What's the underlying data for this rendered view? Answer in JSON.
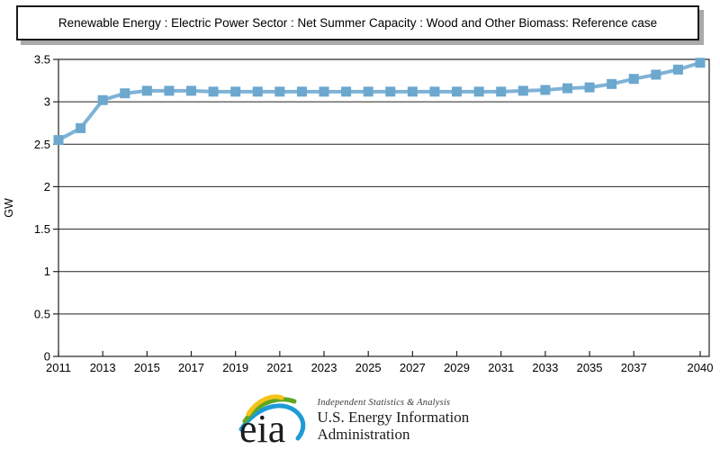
{
  "title": {
    "text": "Renewable Energy : Electric Power Sector : Net Summer Capacity : Wood and Other Biomass: Reference case"
  },
  "chart_data": {
    "type": "line",
    "title": "Renewable Energy : Electric Power Sector : Net Summer Capacity : Wood and Other Biomass: Reference case",
    "xlabel": "",
    "ylabel": "GW",
    "ylim": [
      0,
      3.5
    ],
    "yticks": [
      0,
      0.5,
      1,
      1.5,
      2,
      2.5,
      3,
      3.5
    ],
    "xtick_labels": [
      2011,
      2013,
      2015,
      2017,
      2019,
      2021,
      2023,
      2025,
      2027,
      2029,
      2031,
      2033,
      2035,
      2037,
      2040
    ],
    "x": [
      2011,
      2012,
      2013,
      2014,
      2015,
      2016,
      2017,
      2018,
      2019,
      2020,
      2021,
      2022,
      2023,
      2024,
      2025,
      2026,
      2027,
      2028,
      2029,
      2030,
      2031,
      2032,
      2033,
      2034,
      2035,
      2036,
      2037,
      2038,
      2039,
      2040
    ],
    "series": [
      {
        "name": "Reference case",
        "marker": "square",
        "values": [
          2.55,
          2.69,
          3.02,
          3.1,
          3.13,
          3.13,
          3.13,
          3.12,
          3.12,
          3.12,
          3.12,
          3.12,
          3.12,
          3.12,
          3.12,
          3.12,
          3.12,
          3.12,
          3.12,
          3.12,
          3.12,
          3.13,
          3.14,
          3.16,
          3.17,
          3.21,
          3.27,
          3.32,
          3.38,
          3.46
        ]
      }
    ],
    "grid": "horizontal",
    "legend": "none"
  },
  "colors": {
    "series_marker": "#6CA7CE",
    "series_line": "#7FB2D6",
    "grid_line": "#222222",
    "axis_text": "#000000",
    "logo_blue": "#1D9BD7",
    "logo_green": "#5FA624",
    "logo_yellow": "#F3C317",
    "logo_text": "#1c1c1c"
  },
  "footer": {
    "logo_text": "eia",
    "tagline": "Independent Statistics & Analysis",
    "org_name": "U.S. Energy Information Administration"
  }
}
